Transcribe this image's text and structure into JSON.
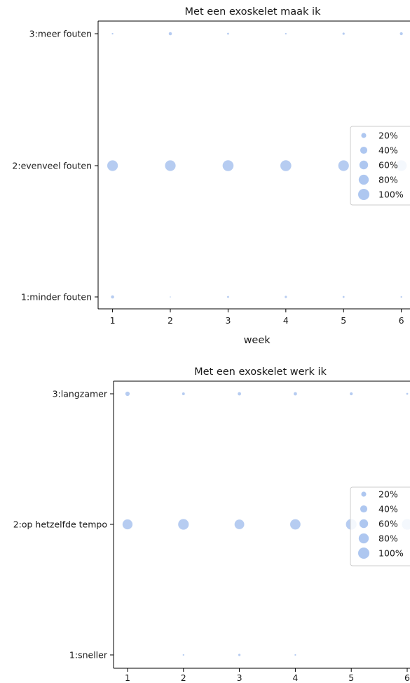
{
  "chart_data": [
    {
      "type": "scatter",
      "title": "Met een exoskelet maak ik",
      "xlabel": "week",
      "ylabel": "",
      "x_ticks": [
        "1",
        "2",
        "3",
        "4",
        "5",
        "6"
      ],
      "y_categories": [
        "1:minder fouten",
        "2:evenveel fouten",
        "3:meer fouten"
      ],
      "points": [
        {
          "x": 1,
          "y": 3,
          "pct": 2
        },
        {
          "x": 2,
          "y": 3,
          "pct": 8
        },
        {
          "x": 3,
          "y": 3,
          "pct": 3
        },
        {
          "x": 4,
          "y": 3,
          "pct": 2
        },
        {
          "x": 5,
          "y": 3,
          "pct": 4
        },
        {
          "x": 6,
          "y": 3,
          "pct": 7
        },
        {
          "x": 1,
          "y": 2,
          "pct": 90
        },
        {
          "x": 2,
          "y": 2,
          "pct": 90
        },
        {
          "x": 3,
          "y": 2,
          "pct": 95
        },
        {
          "x": 4,
          "y": 2,
          "pct": 95
        },
        {
          "x": 5,
          "y": 2,
          "pct": 90
        },
        {
          "x": 6,
          "y": 2,
          "pct": 92
        },
        {
          "x": 1,
          "y": 1,
          "pct": 8
        },
        {
          "x": 2,
          "y": 1,
          "pct": 1
        },
        {
          "x": 3,
          "y": 1,
          "pct": 3
        },
        {
          "x": 4,
          "y": 1,
          "pct": 4
        },
        {
          "x": 5,
          "y": 1,
          "pct": 3
        },
        {
          "x": 6,
          "y": 1,
          "pct": 2
        }
      ],
      "legend": [
        "20%",
        "40%",
        "60%",
        "80%",
        "100%"
      ],
      "legend_values": [
        20,
        40,
        60,
        80,
        100
      ],
      "legend_position": "center-right",
      "marker_color": "#aec7f0",
      "grid": false
    },
    {
      "type": "scatter",
      "title": "Met een exoskelet werk ik",
      "xlabel": "",
      "ylabel": "",
      "x_ticks": [
        "1",
        "2",
        "3",
        "4",
        "5",
        "6"
      ],
      "y_categories": [
        "1:sneller",
        "2:op hetzelfde tempo",
        "3:langzamer"
      ],
      "points": [
        {
          "x": 1,
          "y": 3,
          "pct": 15
        },
        {
          "x": 2,
          "y": 3,
          "pct": 6
        },
        {
          "x": 3,
          "y": 3,
          "pct": 9
        },
        {
          "x": 4,
          "y": 3,
          "pct": 9
        },
        {
          "x": 5,
          "y": 3,
          "pct": 7
        },
        {
          "x": 6,
          "y": 3,
          "pct": 3
        },
        {
          "x": 1,
          "y": 2,
          "pct": 80
        },
        {
          "x": 2,
          "y": 2,
          "pct": 90
        },
        {
          "x": 3,
          "y": 2,
          "pct": 75
        },
        {
          "x": 4,
          "y": 2,
          "pct": 85
        },
        {
          "x": 5,
          "y": 2,
          "pct": 90
        },
        {
          "x": 6,
          "y": 2,
          "pct": 92
        },
        {
          "x": 1,
          "y": 1,
          "pct": 0
        },
        {
          "x": 2,
          "y": 1,
          "pct": 2
        },
        {
          "x": 3,
          "y": 1,
          "pct": 4
        },
        {
          "x": 4,
          "y": 1,
          "pct": 2
        },
        {
          "x": 5,
          "y": 1,
          "pct": 0
        },
        {
          "x": 6,
          "y": 1,
          "pct": 0
        }
      ],
      "legend": [
        "20%",
        "40%",
        "60%",
        "80%",
        "100%"
      ],
      "legend_values": [
        20,
        40,
        60,
        80,
        100
      ],
      "legend_position": "center-right",
      "marker_color": "#aec7f0",
      "grid": false
    }
  ]
}
